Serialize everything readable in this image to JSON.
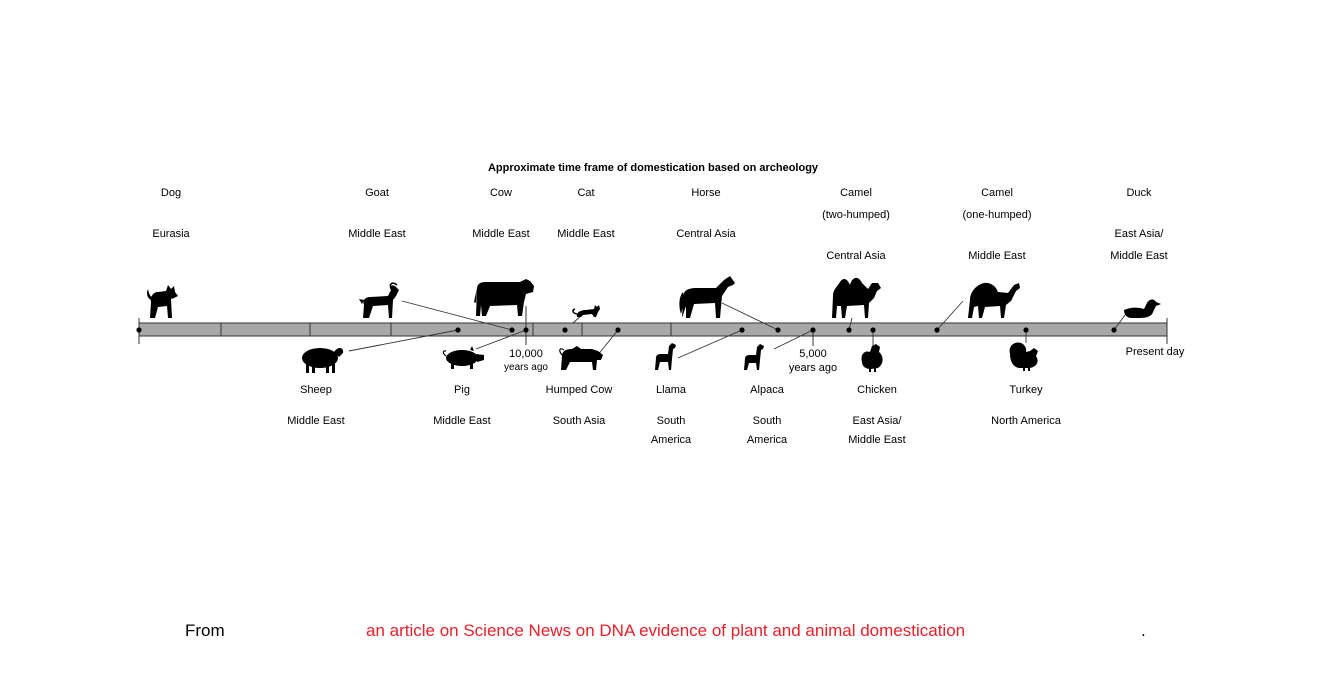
{
  "title": "Approximate time frame of domestication based on archeology",
  "animals_above": [
    {
      "name": "Dog",
      "name2": "",
      "region": "Eurasia",
      "region2": "",
      "icon": "dog-icon"
    },
    {
      "name": "Goat",
      "name2": "",
      "region": "Middle East",
      "region2": "",
      "icon": "goat-icon"
    },
    {
      "name": "Cow",
      "name2": "",
      "region": "Middle East",
      "region2": "",
      "icon": "cow-icon"
    },
    {
      "name": "Cat",
      "name2": "",
      "region": "Middle East",
      "region2": "",
      "icon": "cat-icon"
    },
    {
      "name": "Horse",
      "name2": "",
      "region": "Central Asia",
      "region2": "",
      "icon": "horse-icon"
    },
    {
      "name": "Camel",
      "name2": "(two-humped)",
      "region": "Central Asia",
      "region2": "",
      "icon": "bactrian-camel-icon"
    },
    {
      "name": "Camel",
      "name2": "(one-humped)",
      "region": "Middle East",
      "region2": "",
      "icon": "dromedary-camel-icon"
    },
    {
      "name": "Duck",
      "name2": "",
      "region": "East Asia/",
      "region2": "Middle East",
      "icon": "duck-icon"
    }
  ],
  "animals_below": [
    {
      "name": "Sheep",
      "region": "Middle East",
      "region2": "",
      "icon": "sheep-icon"
    },
    {
      "name": "Pig",
      "region": "Middle East",
      "region2": "",
      "icon": "pig-icon"
    },
    {
      "name": "Humped Cow",
      "region": "South Asia",
      "region2": "",
      "icon": "humped-cow-icon"
    },
    {
      "name": "Llama",
      "region": "South",
      "region2": "America",
      "icon": "llama-icon"
    },
    {
      "name": "Alpaca",
      "region": "South",
      "region2": "America",
      "icon": "alpaca-icon"
    },
    {
      "name": "Chicken",
      "region": "East Asia/",
      "region2": "Middle East",
      "icon": "chicken-icon"
    },
    {
      "name": "Turkey",
      "region": "North America",
      "region2": "",
      "icon": "turkey-icon"
    }
  ],
  "markers": [
    {
      "line1": "10,000",
      "line2": "years ago"
    },
    {
      "line1": "5,000",
      "line2": "years ago"
    },
    {
      "line1": "Present day",
      "line2": ""
    }
  ],
  "footer": {
    "prefix": "From",
    "link_text": "an article on Science News on DNA evidence of plant and animal domestication",
    "suffix": "."
  },
  "colors": {
    "bar": "#a8a8a8",
    "link": "#e8202a"
  }
}
